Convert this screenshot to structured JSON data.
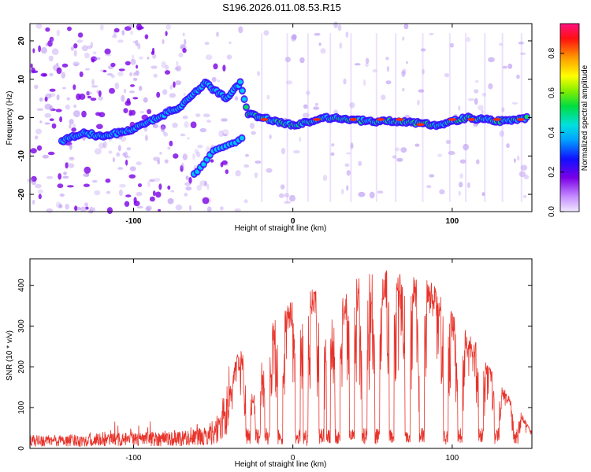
{
  "title": "S196.2026.011.08.53.R15",
  "colors": {
    "snr_line": "#e8332a",
    "axis": "#000000",
    "spectrogram_ridge": "#00c8ff",
    "spectrogram_noise": "#7a00e6"
  },
  "chart_data": [
    {
      "type": "heatmap",
      "name": "spectrogram",
      "xlabel": "Height of straight line (km)",
      "ylabel": "Frequency (Hz)",
      "xlim": [
        -165,
        150
      ],
      "ylim": [
        -24.5,
        24.5
      ],
      "xticks": [
        -100,
        0,
        100
      ],
      "xtick_labels": [
        "-100",
        "0",
        "100"
      ],
      "yticks": [
        -20,
        -10,
        0,
        10,
        20
      ],
      "ytick_labels": [
        "-20",
        "-10",
        "0",
        "10",
        "20"
      ],
      "colorbar": {
        "label": "Normalized spectral amplitude",
        "range": [
          0.0,
          0.95
        ],
        "ticks": [
          0.0,
          0.2,
          0.4,
          0.6,
          0.8
        ],
        "tick_labels": [
          "0.0",
          "0.2",
          "0.4",
          "0.6",
          "0.8"
        ]
      },
      "ridge": {
        "description_points_km_hz": [
          [
            -145,
            -6
          ],
          [
            -130,
            -4
          ],
          [
            -120,
            -5
          ],
          [
            -100,
            -3
          ],
          [
            -70,
            3
          ],
          [
            -62,
            6
          ],
          [
            -55,
            9
          ],
          [
            -42,
            5
          ],
          [
            -33,
            9
          ],
          [
            -28,
            1
          ],
          [
            -20,
            0
          ],
          [
            -10,
            -1
          ],
          [
            0,
            -2
          ],
          [
            20,
            0
          ],
          [
            50,
            -1
          ],
          [
            70,
            -1
          ],
          [
            90,
            -2
          ],
          [
            110,
            0
          ],
          [
            130,
            -1
          ],
          [
            148,
            0
          ]
        ],
        "branch_points_km_hz": [
          [
            -62,
            -15
          ],
          [
            -50,
            -9
          ],
          [
            -40,
            -7
          ],
          [
            -30,
            -5
          ]
        ]
      }
    },
    {
      "type": "line",
      "name": "snr",
      "xlabel": "Height of straight line (km)",
      "ylabel": "SNR (10 * v/v)",
      "xlim": [
        -165,
        150
      ],
      "ylim": [
        0,
        465
      ],
      "xticks": [
        -100,
        0,
        100
      ],
      "xtick_labels": [
        "-100",
        "0",
        "100"
      ],
      "yticks": [
        0,
        100,
        200,
        300,
        400
      ],
      "ytick_labels": [
        "0",
        "100",
        "200",
        "300",
        "400"
      ],
      "envelope_km_snr": [
        [
          -165,
          20
        ],
        [
          -130,
          22
        ],
        [
          -100,
          25
        ],
        [
          -70,
          28
        ],
        [
          -55,
          32
        ],
        [
          -45,
          60
        ],
        [
          -38,
          170
        ],
        [
          -35,
          230
        ],
        [
          -30,
          230
        ],
        [
          -25,
          200
        ],
        [
          -20,
          230
        ],
        [
          -10,
          320
        ],
        [
          0,
          350
        ],
        [
          10,
          380
        ],
        [
          20,
          380
        ],
        [
          30,
          360
        ],
        [
          40,
          400
        ],
        [
          50,
          420
        ],
        [
          60,
          420
        ],
        [
          70,
          410
        ],
        [
          80,
          420
        ],
        [
          90,
          380
        ],
        [
          100,
          320
        ],
        [
          110,
          280
        ],
        [
          120,
          220
        ],
        [
          130,
          150
        ],
        [
          140,
          110
        ],
        [
          150,
          40
        ]
      ],
      "dropouts_km": [
        -28,
        -22,
        -16,
        -8,
        3,
        8,
        18,
        22,
        28,
        37,
        45,
        53,
        62,
        72,
        81,
        96,
        105,
        118,
        128,
        140
      ]
    }
  ]
}
